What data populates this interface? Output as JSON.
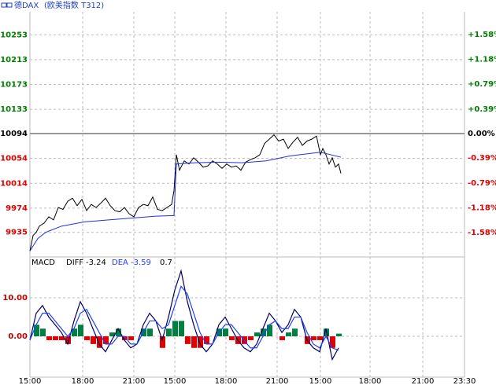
{
  "header": {
    "name": "德DAX",
    "market": "(欧美指数 T312)"
  },
  "chart_data": [
    {
      "type": "line",
      "base": 10094,
      "up_color": "#008000",
      "down_color": "#e00000",
      "ylim": [
        9898,
        10290
      ],
      "yticks": [
        9935,
        9974,
        10014,
        10054,
        10094,
        10133,
        10173,
        10213,
        10253
      ],
      "y2lim": [
        -1.94,
        1.94
      ],
      "y2ticks": [
        {
          "value": -1.58,
          "label": "-1.58%"
        },
        {
          "value": -1.18,
          "label": "-1.18%"
        },
        {
          "value": -0.79,
          "label": "-0.79%"
        },
        {
          "value": -0.39,
          "label": "-0.39%"
        },
        {
          "value": 0,
          "label": "0.00%"
        },
        {
          "value": 0.39,
          "label": "+0.39%"
        },
        {
          "value": 0.79,
          "label": "+0.79%"
        },
        {
          "value": 1.18,
          "label": "+1.18%"
        },
        {
          "value": 1.58,
          "label": "+1.58%"
        }
      ],
      "xlim": [
        0,
        552
      ],
      "xticks": [
        {
          "value": 0,
          "label": "15:00"
        },
        {
          "value": 67,
          "label": "18:00"
        },
        {
          "value": 132,
          "label": "21:00"
        },
        {
          "value": 184,
          "label": "15:00"
        },
        {
          "value": 249,
          "label": "18:00"
        },
        {
          "value": 314,
          "label": "21:00"
        },
        {
          "value": 369,
          "label": "15:00"
        },
        {
          "value": 432,
          "label": "18:00"
        },
        {
          "value": 499,
          "label": "21:00"
        },
        {
          "value": 552,
          "label": "23:30"
        }
      ],
      "grid": true,
      "series": [
        {
          "color": "#000000",
          "x": [
            0,
            4,
            8,
            12,
            18,
            24,
            30,
            36,
            42,
            48,
            54,
            60,
            66,
            72,
            78,
            84,
            90,
            96,
            102,
            108,
            114,
            120,
            126,
            132,
            138,
            144,
            150,
            156,
            162,
            168,
            174,
            180,
            183,
            186,
            190,
            196,
            202,
            208,
            214,
            220,
            226,
            232,
            238,
            244,
            250,
            256,
            262,
            268,
            274,
            280,
            286,
            292,
            298,
            304,
            310,
            316,
            322,
            328,
            334,
            340,
            346,
            352,
            358,
            364,
            369,
            372,
            376,
            380,
            384,
            388,
            392,
            395
          ],
          "values": [
            9905,
            9930,
            9935,
            9945,
            9950,
            9960,
            9955,
            9975,
            9972,
            9985,
            9990,
            9978,
            9988,
            9970,
            9980,
            9975,
            9982,
            9990,
            9978,
            9970,
            9968,
            9975,
            9965,
            9960,
            9975,
            9980,
            9978,
            9992,
            9972,
            9970,
            9975,
            9980,
            10002,
            10060,
            10035,
            10050,
            10045,
            10055,
            10048,
            10040,
            10042,
            10050,
            10045,
            10038,
            10045,
            10040,
            10042,
            10035,
            10048,
            10052,
            10055,
            10060,
            10078,
            10085,
            10092,
            10082,
            10085,
            10070,
            10080,
            10088,
            10075,
            10082,
            10085,
            10090,
            10060,
            10070,
            10060,
            10045,
            10055,
            10040,
            10045,
            10030
          ]
        },
        {
          "color": "#2030e0",
          "x": [
            0,
            10,
            20,
            40,
            70,
            100,
            130,
            160,
            183,
            186,
            210,
            240,
            270,
            300,
            330,
            369,
            372,
            395
          ],
          "values": [
            9905,
            9925,
            9935,
            9945,
            9952,
            9955,
            9958,
            9961,
            9962,
            10045,
            10047,
            10048,
            10047,
            10050,
            10058,
            10064,
            10063,
            10056
          ]
        }
      ]
    },
    {
      "type": "macd",
      "title": "MACD",
      "diff_label": "DIFF",
      "diff_value": -3.24,
      "dea_label": "DEA",
      "dea_value": -3.59,
      "macd_value": 0.7,
      "up_color": "#008040",
      "down_color": "#e00000",
      "ylim": [
        -10.6,
        19.6
      ],
      "yticks": [
        {
          "value": 0,
          "label": "0.00"
        },
        {
          "value": 10,
          "label": "10.00"
        }
      ],
      "x": [
        0,
        8,
        16,
        24,
        32,
        40,
        48,
        56,
        64,
        72,
        80,
        88,
        96,
        104,
        112,
        120,
        128,
        136,
        144,
        152,
        160,
        168,
        176,
        184,
        192,
        200,
        208,
        216,
        224,
        232,
        240,
        248,
        256,
        264,
        272,
        280,
        288,
        296,
        304,
        312,
        320,
        328,
        336,
        344,
        352,
        360,
        368,
        376,
        384,
        392
      ],
      "series": [
        {
          "name": "DIFF",
          "color": "#000060",
          "values": [
            -1,
            6,
            8,
            5,
            3,
            1,
            -2,
            4,
            9,
            6,
            2,
            -2,
            -4,
            -1,
            2,
            -1,
            -3,
            -2,
            3,
            6,
            4,
            -1,
            5,
            12,
            17,
            9,
            3,
            -2,
            -4,
            -2,
            3,
            5,
            2,
            -1,
            -3,
            -4,
            -2,
            2,
            6,
            4,
            1,
            3,
            7,
            5,
            -1,
            -3,
            -4,
            2,
            -6,
            -3
          ]
        },
        {
          "name": "DEA",
          "color": "#2040ff",
          "values": [
            -1,
            3,
            6,
            6,
            4,
            2,
            0,
            2,
            6,
            7,
            4,
            1,
            -2,
            -2,
            0,
            0,
            -2,
            -2,
            1,
            4,
            4,
            2,
            3,
            8,
            13,
            11,
            6,
            1,
            -2,
            -2,
            1,
            3,
            3,
            1,
            -1,
            -3,
            -3,
            0,
            3,
            4,
            2,
            2,
            5,
            5,
            1,
            -2,
            -3,
            0,
            -3,
            -3.6
          ]
        },
        {
          "name": "MACD",
          "values": [
            0,
            3,
            2,
            -1,
            -1,
            -1,
            -2,
            2,
            3,
            -1,
            -2,
            -3,
            -2,
            1,
            2,
            -1,
            -1,
            0,
            2,
            2,
            0,
            -3,
            2,
            4,
            4,
            -2,
            -3,
            -3,
            -2,
            0,
            2,
            2,
            -1,
            -2,
            -2,
            -1,
            1,
            2,
            3,
            0,
            -1,
            1,
            2,
            0,
            -2,
            -1,
            -1,
            2,
            -3,
            0.7
          ]
        }
      ]
    }
  ]
}
